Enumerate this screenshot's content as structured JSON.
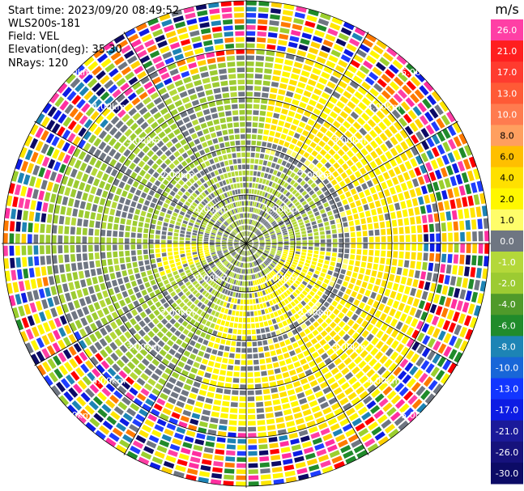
{
  "header": {
    "start_time": "Start time: 2023/09/20 08:49:52",
    "instrument": "WLS200s-181",
    "field": "Field: VEL",
    "elevation": "Elevation(deg): 35.30",
    "nrays": "NRays: 120"
  },
  "colorbar": {
    "unit": "m/s",
    "levels": [
      {
        "label": "26.0",
        "color": "#ff3fa5"
      },
      {
        "label": "21.0",
        "color": "#ff1f1f"
      },
      {
        "label": "17.0",
        "color": "#ff3b2f"
      },
      {
        "label": "13.0",
        "color": "#ff5a36"
      },
      {
        "label": "10.0",
        "color": "#ff7b4f"
      },
      {
        "label": "8.0",
        "color": "#ff9f5f"
      },
      {
        "label": "6.0",
        "color": "#ffbf00"
      },
      {
        "label": "4.0",
        "color": "#ffe000"
      },
      {
        "label": "2.0",
        "color": "#fff700"
      },
      {
        "label": "1.0",
        "color": "#fffd6a"
      },
      {
        "label": "0.0",
        "color": "#6f7682"
      },
      {
        "label": "-1.0",
        "color": "#b4d83a"
      },
      {
        "label": "-2.0",
        "color": "#9ccb32"
      },
      {
        "label": "-4.0",
        "color": "#4f9a2a"
      },
      {
        "label": "-6.0",
        "color": "#208b2b"
      },
      {
        "label": "-8.0",
        "color": "#1d84b5"
      },
      {
        "label": "-10.0",
        "color": "#1866d8"
      },
      {
        "label": "-13.0",
        "color": "#1236ff"
      },
      {
        "label": "-17.0",
        "color": "#0d1ce4"
      },
      {
        "label": "-21.0",
        "color": "#1b1a9a"
      },
      {
        "label": "-26.0",
        "color": "#16127c"
      },
      {
        "label": "-30.0",
        "color": "#0c0b66"
      }
    ]
  },
  "chart_data": {
    "type": "heatmap",
    "projection": "polar ppi",
    "rings_km": [
      1,
      2,
      3,
      4,
      5
    ],
    "ring_labels": {
      "1": "1.00km",
      "2": "2.00km",
      "3": "3.00km",
      "4": "4.00km",
      "5": "5.00km"
    },
    "radial_lines_deg": [
      0,
      30,
      60,
      90,
      120,
      150,
      180,
      210,
      240,
      270,
      300,
      330
    ],
    "nrays": 120
  },
  "pattern": {
    "noise_palette": [
      "#ff2fa0",
      "#ff0000",
      "#ff7a00",
      "#ffd000",
      "#ffe600",
      "#fff600",
      "#9bcf2f",
      "#1f3dff",
      "#0d0b66",
      "#6f7682",
      "#ff3fa5",
      "#0d1ce4",
      "#208b2b",
      "#1d84b5"
    ]
  }
}
